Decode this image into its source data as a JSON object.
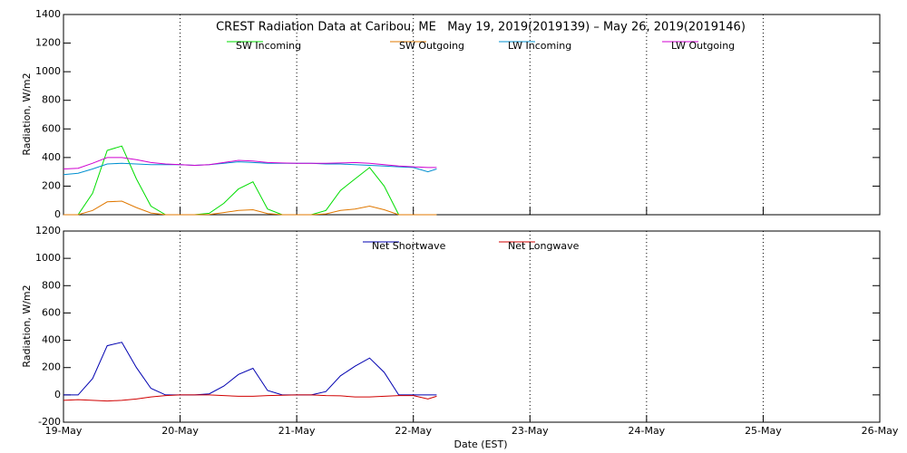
{
  "chart_data": [
    {
      "type": "line",
      "title": "CREST Radiation Data at Caribou, ME   May 19, 2019(2019139) – May 26, 2019(2019146)",
      "y_label": "Radiation, W/m2",
      "x": [
        0,
        0.125,
        0.25,
        0.375,
        0.5,
        0.625,
        0.75,
        0.875,
        1,
        1.125,
        1.25,
        1.375,
        1.5,
        1.625,
        1.75,
        1.875,
        2,
        2.125,
        2.25,
        2.375,
        2.5,
        2.625,
        2.75,
        2.875,
        3,
        3.125,
        3.2
      ],
      "xlim": [
        0,
        7
      ],
      "xticks": [
        {
          "value": 0,
          "label": "19-May"
        },
        {
          "value": 1,
          "label": "20-May"
        },
        {
          "value": 2,
          "label": "21-May"
        },
        {
          "value": 3,
          "label": "22-May"
        },
        {
          "value": 4,
          "label": "23-May"
        },
        {
          "value": 5,
          "label": "24-May"
        },
        {
          "value": 6,
          "label": "25-May"
        },
        {
          "value": 7,
          "label": "26-May"
        }
      ],
      "ylim": [
        0,
        1400
      ],
      "yticks": [
        0,
        200,
        400,
        600,
        800,
        1000,
        1200,
        1400
      ],
      "grid": true,
      "series": [
        {
          "name": "SW Incoming",
          "color": "#00dd00",
          "values": [
            0,
            0,
            150,
            450,
            480,
            250,
            60,
            0,
            0,
            0,
            10,
            80,
            180,
            230,
            40,
            0,
            0,
            0,
            30,
            170,
            250,
            330,
            200,
            0,
            0,
            0,
            0
          ]
        },
        {
          "name": "SW Outgoing",
          "color": "#e07800",
          "values": [
            0,
            0,
            30,
            90,
            95,
            50,
            12,
            0,
            0,
            0,
            2,
            15,
            30,
            35,
            8,
            0,
            0,
            0,
            6,
            30,
            40,
            60,
            35,
            0,
            0,
            0,
            0
          ]
        },
        {
          "name": "LW Incoming",
          "color": "#0090d0",
          "values": [
            280,
            290,
            320,
            355,
            360,
            355,
            350,
            350,
            350,
            345,
            350,
            360,
            370,
            365,
            360,
            360,
            360,
            360,
            355,
            355,
            350,
            345,
            340,
            335,
            330,
            300,
            320
          ]
        },
        {
          "name": "LW Outgoing",
          "color": "#d000d0",
          "values": [
            320,
            325,
            360,
            400,
            400,
            385,
            365,
            355,
            350,
            345,
            350,
            365,
            380,
            375,
            365,
            362,
            360,
            360,
            360,
            362,
            365,
            360,
            350,
            340,
            335,
            330,
            330
          ]
        }
      ]
    },
    {
      "type": "line",
      "y_label": "Radiation, W/m2",
      "x_label": "Date (EST)",
      "x": [
        0,
        0.125,
        0.25,
        0.375,
        0.5,
        0.625,
        0.75,
        0.875,
        1,
        1.125,
        1.25,
        1.375,
        1.5,
        1.625,
        1.75,
        1.875,
        2,
        2.125,
        2.25,
        2.375,
        2.5,
        2.625,
        2.75,
        2.875,
        3,
        3.125,
        3.2
      ],
      "xlim": [
        0,
        7
      ],
      "xticks": [
        {
          "value": 0,
          "label": "19-May"
        },
        {
          "value": 1,
          "label": "20-May"
        },
        {
          "value": 2,
          "label": "21-May"
        },
        {
          "value": 3,
          "label": "22-May"
        },
        {
          "value": 4,
          "label": "23-May"
        },
        {
          "value": 5,
          "label": "24-May"
        },
        {
          "value": 6,
          "label": "25-May"
        },
        {
          "value": 7,
          "label": "26-May"
        }
      ],
      "ylim": [
        -200,
        1200
      ],
      "yticks": [
        -200,
        0,
        200,
        400,
        600,
        800,
        1000,
        1200
      ],
      "grid": true,
      "series": [
        {
          "name": "Net Shortwave",
          "color": "#0000b0",
          "values": [
            0,
            0,
            120,
            360,
            385,
            200,
            48,
            0,
            0,
            0,
            8,
            65,
            150,
            195,
            32,
            0,
            0,
            0,
            24,
            140,
            210,
            270,
            165,
            0,
            0,
            0,
            0
          ]
        },
        {
          "name": "Net Longwave",
          "color": "#d00000",
          "values": [
            -40,
            -35,
            -40,
            -45,
            -40,
            -30,
            -15,
            -5,
            0,
            0,
            0,
            -5,
            -10,
            -10,
            -5,
            -2,
            0,
            0,
            -5,
            -7,
            -15,
            -15,
            -10,
            -5,
            -5,
            -30,
            -10
          ]
        }
      ]
    }
  ]
}
